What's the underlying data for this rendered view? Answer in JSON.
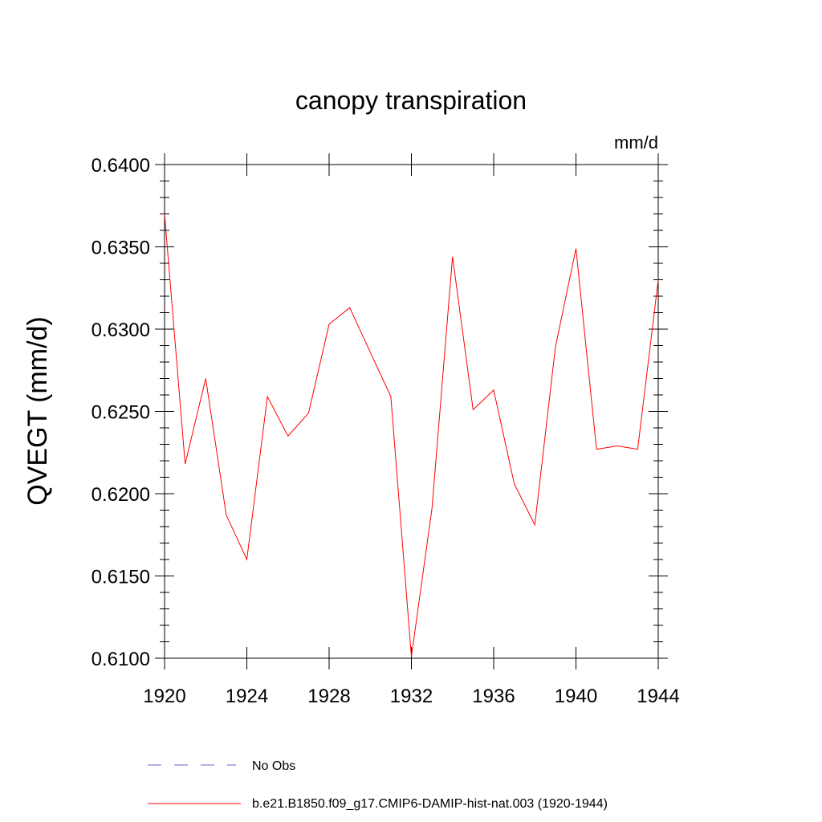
{
  "chart_data": {
    "type": "line",
    "title": "canopy transpiration",
    "units_label": "mm/d",
    "xlabel": "",
    "ylabel": "QVEGT  (mm/d)",
    "xlim": [
      1920,
      1944
    ],
    "ylim": [
      0.61,
      0.64
    ],
    "x_ticks": [
      "1920",
      "1924",
      "1928",
      "1932",
      "1936",
      "1940",
      "1944"
    ],
    "y_ticks": [
      "0.6100",
      "0.6150",
      "0.6200",
      "0.6250",
      "0.6300",
      "0.6350",
      "0.6400"
    ],
    "series": [
      {
        "name": "b.e21.B1850.f09_g17.CMIP6-DAMIP-hist-nat.003 (1920-1944)",
        "color": "#ff0000",
        "x": [
          1920,
          1921,
          1922,
          1923,
          1924,
          1925,
          1926,
          1927,
          1928,
          1929,
          1930,
          1931,
          1932,
          1933,
          1934,
          1935,
          1936,
          1937,
          1938,
          1939,
          1940,
          1941,
          1942,
          1943,
          1944
        ],
        "y": [
          0.637,
          0.6218,
          0.627,
          0.6187,
          0.616,
          0.6259,
          0.6235,
          0.6249,
          0.6303,
          0.6313,
          0.6286,
          0.6259,
          0.6101,
          0.6191,
          0.6344,
          0.6251,
          0.6263,
          0.6206,
          0.6181,
          0.6289,
          0.6349,
          0.6227,
          0.6229,
          0.6227,
          0.633
        ]
      }
    ],
    "legend": [
      {
        "label": "No Obs",
        "style": "dashed",
        "color": "#6666cc"
      },
      {
        "label": "b.e21.B1850.f09_g17.CMIP6-DAMIP-hist-nat.003 (1920-1944)",
        "style": "solid",
        "color": "#ff0000"
      }
    ],
    "legend_position": "bottom",
    "grid": false
  }
}
